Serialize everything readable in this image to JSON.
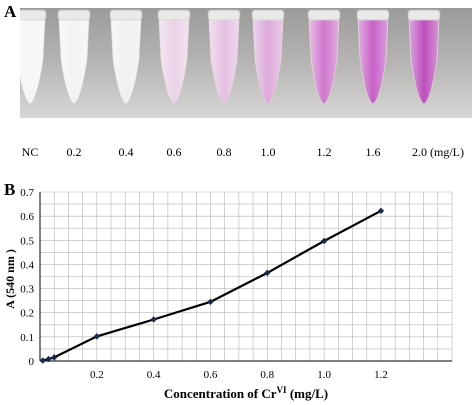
{
  "panel_a": {
    "label": "A",
    "tubes": [
      {
        "label": "NC",
        "color": "#f4f4f2"
      },
      {
        "label": "0.2",
        "color": "#f2f1f1"
      },
      {
        "label": "0.4",
        "color": "#efedef"
      },
      {
        "label": "0.6",
        "color": "#e8cde4"
      },
      {
        "label": "0.8",
        "color": "#e2b9de"
      },
      {
        "label": "1.0",
        "color": "#d9a0d6"
      },
      {
        "label": "1.2",
        "color": "#c96ac6"
      },
      {
        "label": "1.6",
        "color": "#bf4fc0"
      },
      {
        "label": "2.0 (mg/L)",
        "color": "#b53cb5"
      }
    ]
  },
  "panel_b": {
    "label": "B"
  },
  "chart_data": {
    "type": "line",
    "ylabel": "A  (540 nm )",
    "xlabel_prefix": "Concentration of  Cr",
    "xlabel_superscript": "VI",
    "xlabel_suffix": " (mg/L)",
    "xlim": [
      0,
      1.45
    ],
    "ylim": [
      0,
      0.7
    ],
    "x_ticks": [
      "0.2",
      "0.4",
      "0.6",
      "0.8",
      "1.0",
      "1.2"
    ],
    "y_ticks": [
      "0",
      "0.1",
      "0.2",
      "0.3",
      "0.4",
      "0.5",
      "0.6",
      "0.7"
    ],
    "grid": true,
    "series": [
      {
        "x": [
          0.01,
          0.03,
          0.05,
          0.2,
          0.4,
          0.6,
          0.8,
          1.0,
          1.2
        ],
        "y": [
          0.002,
          0.008,
          0.015,
          0.102,
          0.172,
          0.245,
          0.365,
          0.497,
          0.622
        ],
        "color": "#000000",
        "marker_color": "#1a2b4a"
      }
    ]
  }
}
